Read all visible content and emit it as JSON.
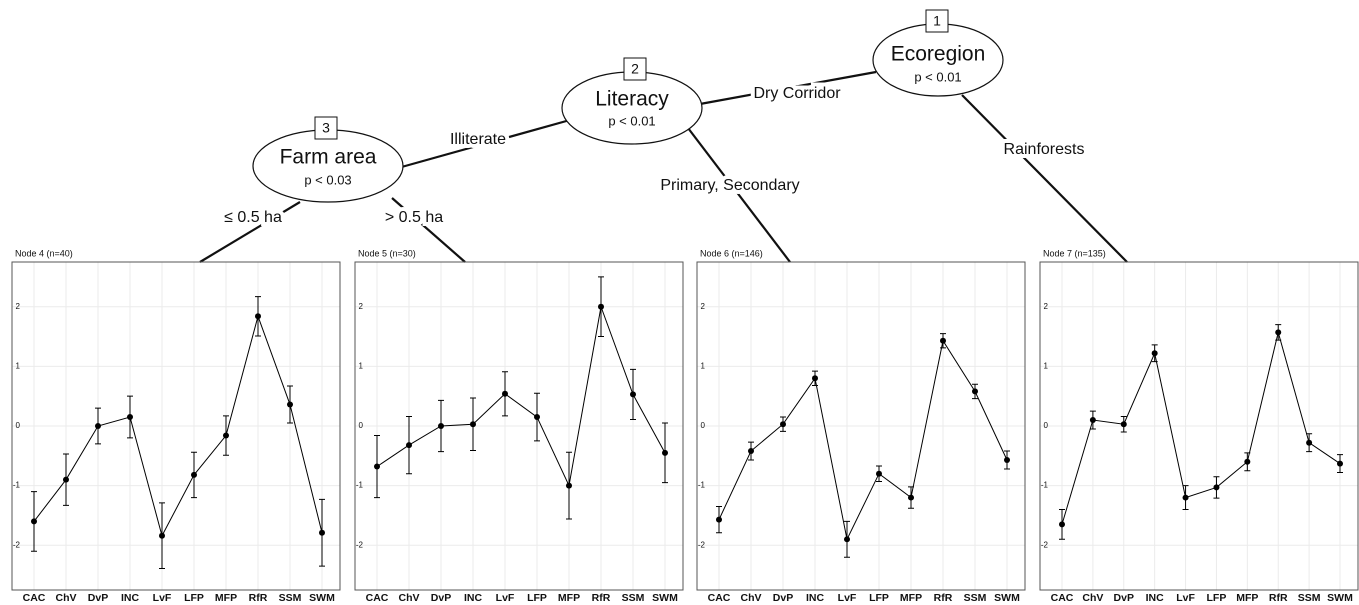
{
  "tree": {
    "nodes": [
      {
        "id": "1",
        "label": "Ecoregion",
        "p": "p < 0.01"
      },
      {
        "id": "2",
        "label": "Literacy",
        "p": "p < 0.01"
      },
      {
        "id": "3",
        "label": "Farm area",
        "p": "p < 0.03"
      }
    ],
    "edges": [
      {
        "label": "Dry Corridor"
      },
      {
        "label": "Rainforests"
      },
      {
        "label": "Illiterate"
      },
      {
        "label": "Primary, Secondary"
      },
      {
        "label": "≤ 0.5 ha"
      },
      {
        "label": "> 0.5 ha"
      }
    ]
  },
  "chart_data": [
    {
      "type": "line",
      "title": "Node 4 (n=40)",
      "categories": [
        "CAC",
        "ChV",
        "DvP",
        "INC",
        "LvF",
        "LFP",
        "MFP",
        "RfR",
        "SSM",
        "SWM"
      ],
      "values": [
        -1.6,
        -0.9,
        0.0,
        0.15,
        -1.84,
        -0.82,
        -0.16,
        1.84,
        0.36,
        -1.79
      ],
      "errors": [
        0.5,
        0.43,
        0.3,
        0.35,
        0.55,
        0.38,
        0.33,
        0.33,
        0.31,
        0.56
      ],
      "ylim": [
        -2.75,
        2.75
      ],
      "yticks": [
        -2,
        -1,
        0,
        1,
        2
      ],
      "grid": true,
      "color": "#000000"
    },
    {
      "type": "line",
      "title": "Node 5 (n=30)",
      "categories": [
        "CAC",
        "ChV",
        "DvP",
        "INC",
        "LvF",
        "LFP",
        "MFP",
        "RfR",
        "SSM",
        "SWM"
      ],
      "values": [
        -0.68,
        -0.32,
        0.0,
        0.03,
        0.54,
        0.15,
        -1.0,
        2.0,
        0.53,
        -0.45
      ],
      "errors": [
        0.52,
        0.48,
        0.43,
        0.44,
        0.37,
        0.4,
        0.56,
        0.5,
        0.42,
        0.5
      ],
      "ylim": [
        -2.75,
        2.75
      ],
      "yticks": [
        -2,
        -1,
        0,
        1,
        2
      ],
      "grid": true,
      "color": "#000000"
    },
    {
      "type": "line",
      "title": "Node 6 (n=146)",
      "categories": [
        "CAC",
        "ChV",
        "DvP",
        "INC",
        "LvF",
        "LFP",
        "MFP",
        "RfR",
        "SSM",
        "SWM"
      ],
      "values": [
        -1.57,
        -0.42,
        0.03,
        0.8,
        -1.9,
        -0.8,
        -1.2,
        1.43,
        0.58,
        -0.57
      ],
      "errors": [
        0.22,
        0.15,
        0.12,
        0.12,
        0.3,
        0.13,
        0.18,
        0.12,
        0.12,
        0.15
      ],
      "ylim": [
        -2.75,
        2.75
      ],
      "yticks": [
        -2,
        -1,
        0,
        1,
        2
      ],
      "grid": true,
      "color": "#000000"
    },
    {
      "type": "line",
      "title": "Node 7 (n=135)",
      "categories": [
        "CAC",
        "ChV",
        "DvP",
        "INC",
        "LvF",
        "LFP",
        "MFP",
        "RfR",
        "SSM",
        "SWM"
      ],
      "values": [
        -1.65,
        0.1,
        0.03,
        1.22,
        -1.2,
        -1.03,
        -0.6,
        1.57,
        -0.28,
        -0.63
      ],
      "errors": [
        0.25,
        0.15,
        0.13,
        0.14,
        0.2,
        0.18,
        0.15,
        0.13,
        0.15,
        0.15
      ],
      "ylim": [
        -2.75,
        2.75
      ],
      "yticks": [
        -2,
        -1,
        0,
        1,
        2
      ],
      "grid": true,
      "color": "#000000"
    }
  ]
}
